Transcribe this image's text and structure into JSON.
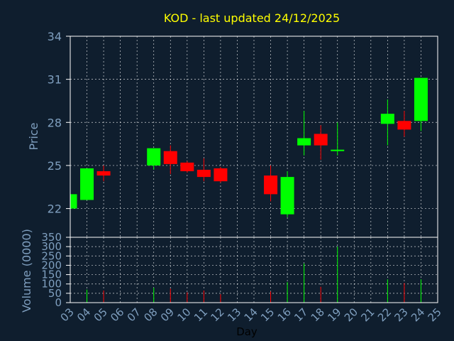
{
  "chart_data": [
    {
      "type": "candlestick",
      "title": "KOD - last updated 24/12/2025",
      "ylabel": "Price",
      "xlabel": "",
      "ylim": [
        20,
        34
      ],
      "yticks": [
        "34",
        "31",
        "28",
        "25",
        "22"
      ],
      "ytick_values": [
        34,
        31,
        28,
        25,
        22
      ],
      "grid": true,
      "x_domain": [
        3,
        25
      ],
      "candles": [
        {
          "day": 3,
          "open": 22.0,
          "close": 23.0,
          "high": 23.0,
          "low": 22.0
        },
        {
          "day": 4,
          "open": 22.6,
          "close": 24.8,
          "high": 24.8,
          "low": 22.6
        },
        {
          "day": 5,
          "open": 24.6,
          "close": 24.3,
          "high": 25.0,
          "low": 23.9
        },
        {
          "day": 8,
          "open": 25.0,
          "close": 26.2,
          "high": 26.2,
          "low": 24.7
        },
        {
          "day": 9,
          "open": 26.0,
          "close": 25.1,
          "high": 26.4,
          "low": 24.4
        },
        {
          "day": 10,
          "open": 25.2,
          "close": 24.6,
          "high": 25.3,
          "low": 24.5
        },
        {
          "day": 11,
          "open": 24.7,
          "close": 24.2,
          "high": 25.5,
          "low": 23.9
        },
        {
          "day": 12,
          "open": 24.8,
          "close": 23.9,
          "high": 24.9,
          "low": 23.8
        },
        {
          "day": 15,
          "open": 24.3,
          "close": 23.0,
          "high": 25.0,
          "low": 22.5
        },
        {
          "day": 16,
          "open": 21.6,
          "close": 24.2,
          "high": 24.6,
          "low": 21.4
        },
        {
          "day": 17,
          "open": 26.4,
          "close": 26.9,
          "high": 28.8,
          "low": 25.7
        },
        {
          "day": 18,
          "open": 27.2,
          "close": 26.4,
          "high": 27.8,
          "low": 25.4
        },
        {
          "day": 19,
          "open": 26.0,
          "close": 26.1,
          "high": 28.0,
          "low": 25.7
        },
        {
          "day": 22,
          "open": 27.9,
          "close": 28.6,
          "high": 29.6,
          "low": 26.4
        },
        {
          "day": 23,
          "open": 28.1,
          "close": 27.5,
          "high": 28.8,
          "low": 27.0
        },
        {
          "day": 24,
          "open": 28.1,
          "close": 31.1,
          "high": 31.1,
          "low": 27.4
        }
      ],
      "up_color": "#00ff00",
      "down_color": "#ff0000"
    },
    {
      "type": "bar",
      "ylabel": "Volume (0000)",
      "xlabel": "Day",
      "ylim": [
        0,
        350
      ],
      "yticks": [
        "350",
        "300",
        "250",
        "200",
        "150",
        "100",
        "50",
        "0"
      ],
      "ytick_values": [
        350,
        300,
        250,
        200,
        150,
        100,
        50,
        0
      ],
      "grid": true,
      "x_domain": [
        3,
        25
      ],
      "categories": [
        "03",
        "04",
        "05",
        "06",
        "07",
        "08",
        "09",
        "10",
        "11",
        "12",
        "13",
        "14",
        "15",
        "16",
        "17",
        "18",
        "19",
        "20",
        "21",
        "22",
        "23",
        "24",
        "25"
      ],
      "bars": [
        {
          "day": 4,
          "value": 70,
          "color": "#00ff00"
        },
        {
          "day": 5,
          "value": 65,
          "color": "#ff0000"
        },
        {
          "day": 8,
          "value": 80,
          "color": "#00ff00"
        },
        {
          "day": 9,
          "value": 75,
          "color": "#ff0000"
        },
        {
          "day": 10,
          "value": 55,
          "color": "#ff0000"
        },
        {
          "day": 11,
          "value": 65,
          "color": "#ff0000"
        },
        {
          "day": 12,
          "value": 45,
          "color": "#ff0000"
        },
        {
          "day": 15,
          "value": 60,
          "color": "#ff0000"
        },
        {
          "day": 16,
          "value": 110,
          "color": "#00ff00"
        },
        {
          "day": 17,
          "value": 210,
          "color": "#00ff00"
        },
        {
          "day": 18,
          "value": 85,
          "color": "#ff0000"
        },
        {
          "day": 19,
          "value": 300,
          "color": "#00ff00"
        },
        {
          "day": 22,
          "value": 125,
          "color": "#00ff00"
        },
        {
          "day": 23,
          "value": 105,
          "color": "#ff0000"
        },
        {
          "day": 24,
          "value": 125,
          "color": "#00ff00"
        }
      ]
    }
  ],
  "colors": {
    "background": "#0f1e2e",
    "grid": "#ffffff",
    "axis_text": "#7f9fbf",
    "title": "#ffff00"
  }
}
